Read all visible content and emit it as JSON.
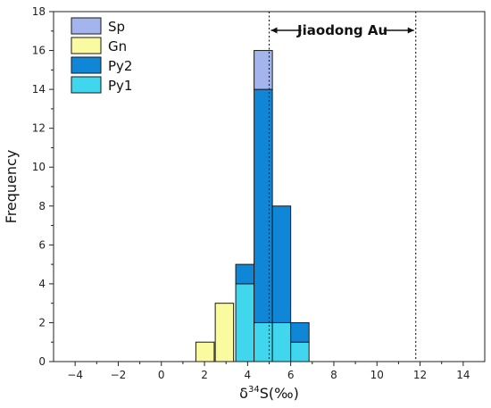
{
  "chart_data": {
    "type": "bar",
    "stacked": true,
    "title": "",
    "xlabel_prefix": "δ",
    "xlabel_sup": "34",
    "xlabel_suffix": "S(‰)",
    "ylabel": "Frequency",
    "xlim": [
      -5,
      15
    ],
    "ylim": [
      0,
      18
    ],
    "xticks": [
      -4,
      -2,
      0,
      2,
      4,
      6,
      8,
      10,
      12,
      14
    ],
    "xtick_labels": [
      "−4",
      "−2",
      "0",
      "2",
      "4",
      "6",
      "8",
      "10",
      "12",
      "14"
    ],
    "yticks": [
      0,
      2,
      4,
      6,
      8,
      10,
      12,
      14,
      16,
      18
    ],
    "ytick_labels": [
      "0",
      "2",
      "4",
      "6",
      "8",
      "10",
      "12",
      "14",
      "16",
      "18"
    ],
    "bin_width": 0.85,
    "bin_starts": [
      1.6,
      2.5,
      3.45,
      4.3,
      5.15,
      6.0
    ],
    "stack_order": [
      "Py1",
      "Py2",
      "Gn",
      "Sp"
    ],
    "series": [
      {
        "name": "Sp",
        "color": "#a4b4ec",
        "values": [
          0,
          0,
          0,
          2,
          0,
          0
        ]
      },
      {
        "name": "Gn",
        "color": "#fafaa0",
        "values": [
          1,
          3,
          0,
          0,
          0,
          0
        ]
      },
      {
        "name": "Py2",
        "color": "#0f87d6",
        "values": [
          0,
          0,
          1,
          12,
          6,
          1
        ]
      },
      {
        "name": "Py1",
        "color": "#3fd6ee",
        "values": [
          0,
          0,
          4,
          2,
          2,
          1
        ]
      }
    ],
    "legend_position": "top-left",
    "grid": false,
    "annotation": {
      "label": "Jiaodong Au",
      "x_range": [
        5,
        11.8
      ],
      "line_style": "dotted",
      "arrows": "both"
    }
  }
}
